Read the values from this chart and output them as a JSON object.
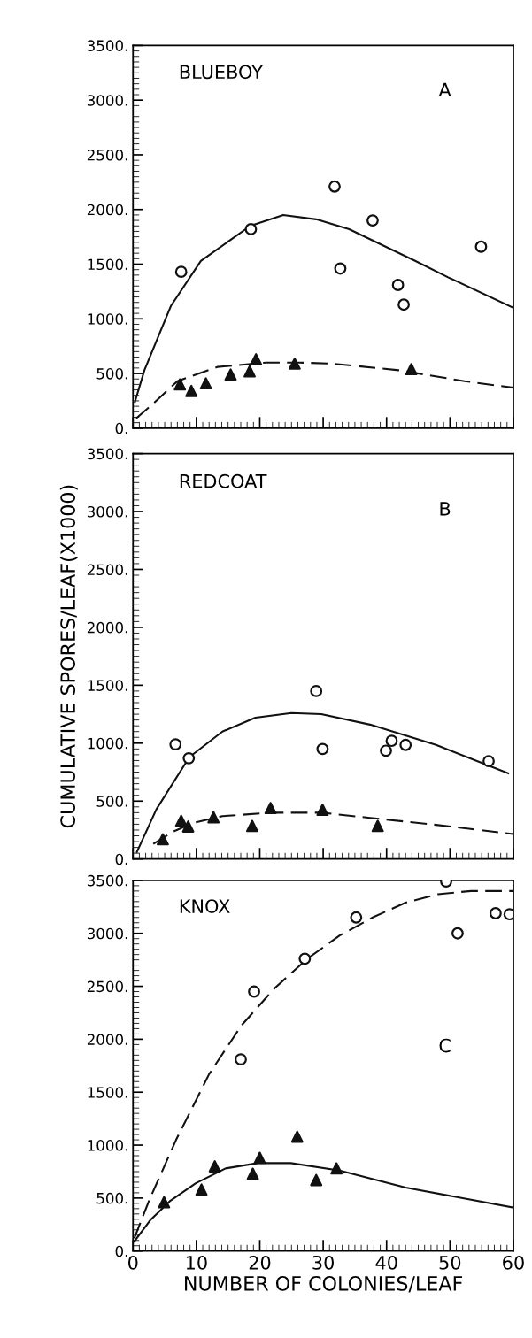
{
  "chart_data": [
    {
      "type": "scatter",
      "title": "BLUEBOY",
      "annotations": [
        "A"
      ],
      "xlim": [
        0,
        60
      ],
      "ylim": [
        0,
        3500
      ],
      "xticks": [
        0,
        10,
        20,
        30,
        40,
        50,
        60
      ],
      "yticks": [
        {
          "value": 0,
          "label": "0."
        },
        {
          "value": 500,
          "label": "500."
        },
        {
          "value": 1000,
          "label": "1000."
        },
        {
          "value": 1500,
          "label": "1500."
        },
        {
          "value": 2000,
          "label": "2000."
        },
        {
          "value": 2500,
          "label": "2500."
        },
        {
          "value": 3000,
          "label": "3000."
        },
        {
          "value": 3500,
          "label": "3500."
        }
      ],
      "tick_labels": "y",
      "grid": false,
      "legend": false,
      "series": [
        {
          "marker": "circle",
          "color": "#111111",
          "x": [
            7.6,
            18.6,
            31.8,
            32.7,
            37.8,
            41.8,
            42.7,
            54.9
          ],
          "values": [
            1430,
            1820,
            2210,
            1460,
            1900,
            1310,
            1130,
            1660
          ]
        },
        {
          "marker": "triangle",
          "color": "#111111",
          "x": [
            7.4,
            9.2,
            11.5,
            15.4,
            18.4,
            19.4,
            25.5,
            43.9
          ],
          "values": [
            400,
            340,
            410,
            490,
            520,
            630,
            590,
            540
          ]
        },
        {
          "type": "line",
          "marker": "none",
          "line_style": "solid",
          "color": "#111111",
          "x": [
            0.3,
            1.8,
            6,
            10.7,
            18.5,
            23.7,
            28.9,
            34.1,
            44.5,
            49.7,
            60
          ],
          "values": [
            240,
            530,
            1120,
            1530,
            1850,
            1950,
            1910,
            1820,
            1530,
            1380,
            1100
          ]
        },
        {
          "type": "line",
          "marker": "none",
          "line_style": "dashed",
          "color": "#111111",
          "x": [
            0.5,
            2.9,
            7,
            13.3,
            21.1,
            26.3,
            31.5,
            41.9,
            52.3,
            60
          ],
          "values": [
            90,
            210,
            430,
            560,
            600,
            600,
            590,
            530,
            430,
            370
          ]
        }
      ]
    },
    {
      "type": "scatter",
      "title": "REDCOAT",
      "annotations": [
        "B"
      ],
      "ylabel": "CUMULATIVE SPORES/LEAF(X1000)",
      "xlim": [
        0,
        60
      ],
      "ylim": [
        0,
        3500
      ],
      "xticks": [
        0,
        10,
        20,
        30,
        40,
        50,
        60
      ],
      "yticks": [
        {
          "value": 0,
          "label": "0."
        },
        {
          "value": 500,
          "label": "500."
        },
        {
          "value": 1000,
          "label": "1000."
        },
        {
          "value": 1500,
          "label": "1500."
        },
        {
          "value": 2000,
          "label": "2000."
        },
        {
          "value": 2500,
          "label": "2500."
        },
        {
          "value": 3000,
          "label": "3000."
        },
        {
          "value": 3500,
          "label": "3500."
        }
      ],
      "tick_labels": "y",
      "grid": false,
      "legend": false,
      "series": [
        {
          "marker": "circle",
          "color": "#111111",
          "x": [
            6.7,
            8.8,
            28.9,
            29.9,
            39.9,
            40.8,
            43.0,
            56.1
          ],
          "values": [
            990,
            870,
            1450,
            950,
            935,
            1020,
            985,
            845
          ]
        },
        {
          "marker": "triangle",
          "color": "#111111",
          "x": [
            4.7,
            7.6,
            8.7,
            12.7,
            18.8,
            21.7,
            29.9,
            38.6
          ],
          "values": [
            170,
            330,
            280,
            360,
            285,
            440,
            425,
            285
          ]
        },
        {
          "type": "line",
          "marker": "none",
          "line_style": "solid",
          "color": "#111111",
          "x": [
            0.6,
            3.7,
            8.9,
            14.1,
            19.3,
            25,
            29.7,
            37.4,
            47.8,
            59.2
          ],
          "values": [
            60,
            430,
            880,
            1100,
            1220,
            1260,
            1250,
            1160,
            985,
            740
          ]
        },
        {
          "type": "line",
          "marker": "none",
          "line_style": "dashed",
          "color": "#111111",
          "x": [
            3.2,
            6.3,
            9.4,
            14.1,
            21.9,
            29.7,
            37.4,
            47.8,
            60
          ],
          "values": [
            130,
            235,
            310,
            370,
            400,
            400,
            355,
            295,
            215
          ]
        }
      ]
    },
    {
      "type": "scatter",
      "title": "KNOX",
      "annotations": [
        "C"
      ],
      "xlabel": "NUMBER OF COLONIES/LEAF",
      "xlim": [
        0,
        60
      ],
      "ylim": [
        0,
        3500
      ],
      "xticks": [
        0,
        10,
        20,
        30,
        40,
        50,
        60
      ],
      "yticks": [
        {
          "value": 0,
          "label": "0."
        },
        {
          "value": 500,
          "label": "500."
        },
        {
          "value": 1000,
          "label": "1000."
        },
        {
          "value": 1500,
          "label": "1500."
        },
        {
          "value": 2000,
          "label": "2000."
        },
        {
          "value": 2500,
          "label": "2500."
        },
        {
          "value": 3000,
          "label": "3000."
        },
        {
          "value": 3500,
          "label": "3500."
        }
      ],
      "grid": false,
      "legend": false,
      "series": [
        {
          "marker": "circle",
          "color": "#111111",
          "x": [
            17.0,
            19.1,
            27.1,
            35.2,
            49.4,
            51.2,
            57.2,
            59.4
          ],
          "values": [
            1810,
            2450,
            2760,
            3150,
            3490,
            3000,
            3190,
            3180
          ]
        },
        {
          "marker": "triangle",
          "color": "#111111",
          "x": [
            4.9,
            10.8,
            12.9,
            18.9,
            20.0,
            25.9,
            28.9,
            32.1
          ],
          "values": [
            460,
            580,
            800,
            730,
            880,
            1080,
            670,
            780
          ]
        },
        {
          "type": "line",
          "marker": "none",
          "line_style": "dashed",
          "color": "#111111",
          "x": [
            0.2,
            2.7,
            6.8,
            12,
            17.1,
            22.3,
            27.5,
            32.6,
            37.8,
            43,
            48.1,
            53.3,
            60
          ],
          "values": [
            120,
            500,
            1050,
            1670,
            2130,
            2480,
            2760,
            2980,
            3150,
            3290,
            3370,
            3400,
            3400
          ]
        },
        {
          "type": "line",
          "marker": "none",
          "line_style": "solid",
          "color": "#111111",
          "x": [
            0.2,
            2.7,
            5.8,
            9.9,
            14.6,
            19.7,
            24.9,
            32.6,
            43,
            60
          ],
          "values": [
            90,
            290,
            470,
            640,
            780,
            830,
            830,
            760,
            600,
            410
          ]
        }
      ]
    }
  ]
}
